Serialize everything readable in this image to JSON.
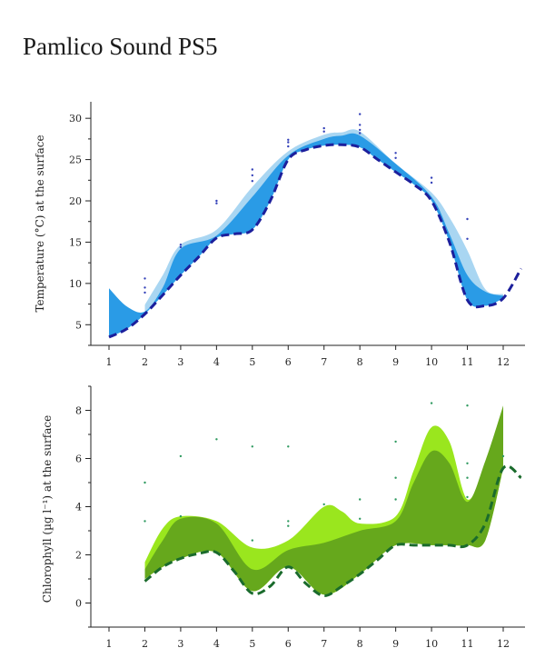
{
  "title": "Pamlico Sound PS5",
  "chart_data": [
    {
      "type": "area",
      "ylabel": "Temperature (°C) at the surface",
      "xlim": [
        0.8,
        12.5
      ],
      "ylim": [
        2.5,
        32
      ],
      "x_ticks": [
        "1",
        "2",
        "3",
        "4",
        "5",
        "6",
        "7",
        "8",
        "9",
        "10",
        "11",
        "12"
      ],
      "y_ticks": [
        "5",
        "10",
        "15",
        "20",
        "25",
        "30"
      ],
      "colors": {
        "band_light": "#a9d6f2",
        "band_dark": "#2a9be6",
        "line": "#1c1f9c",
        "dots": "#3340b8"
      },
      "light_band_top": {
        "x": [
          2,
          2.5,
          3,
          4,
          5,
          6,
          7,
          7.5,
          8,
          9,
          10,
          10.5,
          11,
          11.5,
          12
        ],
        "y": [
          7.4,
          11,
          14.7,
          16.5,
          21.7,
          26,
          28,
          28.3,
          28.4,
          24.5,
          21,
          18,
          14,
          9.3,
          8.7
        ]
      },
      "dark_band_top": {
        "x": [
          1,
          1.5,
          2,
          2.5,
          3,
          4,
          5,
          6,
          7,
          7.5,
          8,
          9,
          10,
          10.5,
          11,
          11.5,
          12
        ],
        "y": [
          9.4,
          7.2,
          6.6,
          9.5,
          14.2,
          15.8,
          20.5,
          25.5,
          27.5,
          27.9,
          27.9,
          24.5,
          20.5,
          16,
          11,
          9,
          8.5
        ]
      },
      "model_line": {
        "x": [
          1,
          1.5,
          2,
          2.5,
          3,
          3.5,
          4,
          4.5,
          5,
          5.5,
          6,
          6.5,
          7,
          7.5,
          8,
          8.5,
          9,
          9.5,
          10,
          10.5,
          11,
          11.5,
          12,
          12.5
        ],
        "y": [
          3.5,
          4.5,
          6.3,
          8.6,
          11,
          13.2,
          15.5,
          16,
          16.5,
          20,
          25,
          26.2,
          26.7,
          26.8,
          26.5,
          25,
          23.5,
          22,
          20,
          15,
          8,
          7.3,
          8.2,
          11.8
        ]
      },
      "observations": {
        "x": [
          2,
          2,
          2,
          3,
          3,
          4,
          4,
          5,
          5,
          5,
          6,
          6,
          6,
          7,
          7,
          8,
          8,
          8,
          8,
          9,
          9,
          10,
          10,
          11,
          11
        ],
        "y": [
          10.6,
          9.5,
          8.9,
          14.7,
          14.4,
          20,
          19.7,
          23.8,
          23.1,
          22.4,
          27.4,
          27.1,
          26.6,
          28.8,
          28.4,
          30.5,
          29.2,
          28.6,
          28.2,
          25.8,
          25.2,
          22.8,
          22.2,
          17.8,
          15.4
        ]
      }
    },
    {
      "type": "area",
      "ylabel": "Chlorophyll (µg l⁻¹) at the surface",
      "xlim": [
        0.8,
        12.5
      ],
      "ylim": [
        -1,
        9
      ],
      "x_ticks": [
        "1",
        "2",
        "3",
        "4",
        "5",
        "6",
        "7",
        "8",
        "9",
        "10",
        "11",
        "12"
      ],
      "y_ticks": [
        "0",
        "2",
        "4",
        "6",
        "8"
      ],
      "colors": {
        "band_light": "#9ae61e",
        "band_dark": "#66a81c",
        "line": "#1a6b2c",
        "dots": "#2f9a60"
      },
      "light_band_top": {
        "x": [
          2,
          2.5,
          3,
          4,
          5,
          6,
          7,
          7.5,
          8,
          9,
          9.5,
          10,
          10.5,
          11,
          11.5,
          12
        ],
        "y": [
          1.7,
          3.1,
          3.6,
          3.4,
          2.3,
          2.6,
          4,
          3.8,
          3.3,
          3.6,
          5.5,
          7.3,
          6.7,
          4.3,
          5.8,
          8.1
        ]
      },
      "light_band_bottom": {
        "x": [
          2,
          2.5,
          3,
          4,
          5,
          6,
          7,
          8,
          9,
          10,
          10.5,
          11,
          11.5,
          12
        ],
        "y": [
          1,
          1.5,
          1.85,
          2.1,
          0.5,
          1.5,
          0.35,
          1.2,
          2.4,
          2.4,
          2.4,
          2.4,
          2.6,
          5.6
        ]
      },
      "dark_band_top": {
        "x": [
          2,
          2.5,
          3,
          4,
          5,
          6,
          7,
          8,
          9,
          9.5,
          10,
          10.5,
          11,
          11.5,
          12
        ],
        "y": [
          1.4,
          2.6,
          3.5,
          3.3,
          1.4,
          2.2,
          2.5,
          3,
          3.4,
          5,
          6.3,
          5.8,
          4.2,
          5.9,
          8.2
        ]
      },
      "dark_band_bottom": {
        "x": [
          2,
          2.5,
          3,
          4,
          5,
          6,
          7,
          8,
          9,
          10,
          10.5,
          11,
          11.5,
          12
        ],
        "y": [
          1,
          1.5,
          1.85,
          2.1,
          0.5,
          1.5,
          0.35,
          1.2,
          2.4,
          2.4,
          2.4,
          2.4,
          2.6,
          5.6
        ]
      },
      "model_line": {
        "x": [
          2,
          2.5,
          3,
          3.5,
          4,
          4.5,
          5,
          5.5,
          6,
          6.5,
          7,
          7.5,
          8,
          8.5,
          9,
          9.5,
          10,
          10.5,
          11,
          11.5,
          12,
          12.5
        ],
        "y": [
          0.9,
          1.5,
          1.85,
          2.05,
          2.1,
          1.3,
          0.4,
          0.7,
          1.5,
          0.8,
          0.3,
          0.7,
          1.2,
          1.8,
          2.4,
          2.4,
          2.4,
          2.4,
          2.4,
          3.3,
          5.6,
          5.2
        ]
      },
      "observations": {
        "x": [
          2,
          2,
          3,
          3,
          4,
          5,
          5,
          6,
          6,
          6,
          7,
          8,
          8,
          9,
          9,
          9,
          10,
          11,
          11,
          11,
          11,
          12
        ],
        "y": [
          5,
          3.4,
          6.1,
          3.6,
          6.8,
          6.5,
          2.6,
          6.5,
          3.4,
          3.2,
          4.1,
          4.3,
          3.5,
          6.7,
          5.2,
          4.3,
          8.3,
          8.2,
          5.8,
          5.2,
          4.4,
          6.1
        ]
      }
    }
  ]
}
